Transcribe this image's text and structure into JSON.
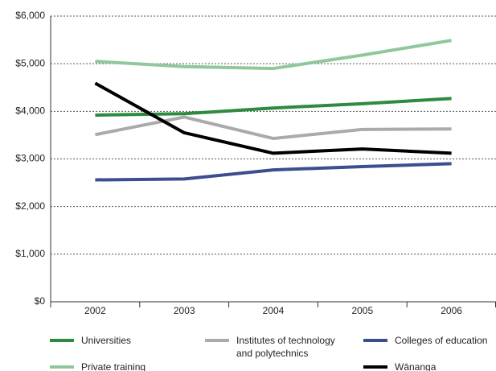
{
  "chart_data": {
    "type": "line",
    "categories": [
      "2002",
      "2003",
      "2004",
      "2005",
      "2006"
    ],
    "ylim": [
      0,
      6000
    ],
    "yticks": [
      {
        "value": 0,
        "label": "$0"
      },
      {
        "value": 1000,
        "label": "$1,000"
      },
      {
        "value": 2000,
        "label": "$2,000"
      },
      {
        "value": 3000,
        "label": "$3,000"
      },
      {
        "value": 4000,
        "label": "$4,000"
      },
      {
        "value": 5000,
        "label": "$5,000"
      },
      {
        "value": 6000,
        "label": "$6,000"
      }
    ],
    "grid": true,
    "series": [
      {
        "name": "Universities",
        "color": "#2e8a3f",
        "values": [
          3920,
          3950,
          4070,
          4160,
          4270
        ]
      },
      {
        "name": "Institutes of technology and polytechnics",
        "color": "#aaaaaa",
        "values": [
          3510,
          3880,
          3430,
          3620,
          3630
        ]
      },
      {
        "name": "Colleges of education",
        "color": "#3b4e8e",
        "values": [
          2560,
          2580,
          2770,
          2840,
          2900
        ]
      },
      {
        "name": "Private training establishments",
        "color": "#90c89b",
        "values": [
          5050,
          4940,
          4900,
          5180,
          5490
        ]
      },
      {
        "name": "Wānanga",
        "color": "#000000",
        "values": [
          4590,
          3550,
          3120,
          3210,
          3120
        ]
      }
    ]
  }
}
